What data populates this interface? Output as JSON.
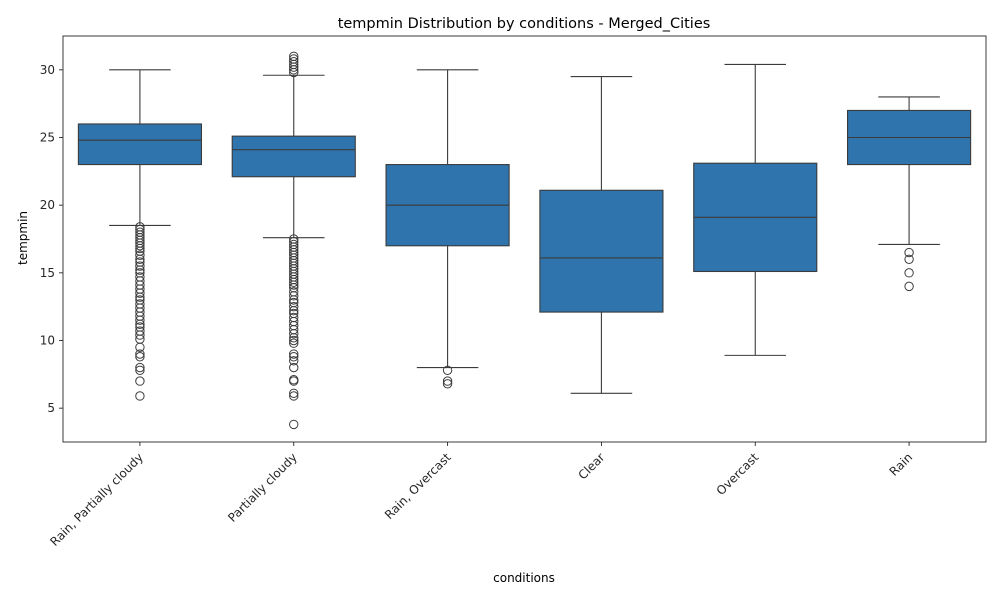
{
  "chart_data": {
    "type": "box",
    "title": "tempmin Distribution by conditions - Merged_Cities",
    "xlabel": "conditions",
    "ylabel": "tempmin",
    "ylim": [
      2.5,
      32.5
    ],
    "yticks": [
      5,
      10,
      15,
      20,
      25,
      30
    ],
    "grid": false,
    "legend": "none",
    "colors": {
      "box_fill": "#2f74ad",
      "line": "#3b3b3b",
      "frame": "#262626"
    },
    "categories": [
      "Rain, Partially cloudy",
      "Partially cloudy",
      "Rain, Overcast",
      "Clear",
      "Overcast",
      "Rain"
    ],
    "boxes": [
      {
        "category": "Rain, Partially cloudy",
        "whisker_low": 18.5,
        "q1": 23.0,
        "median": 24.8,
        "q3": 26.0,
        "whisker_high": 30.0,
        "outliers": [
          18.4,
          18.2,
          18.0,
          17.8,
          17.6,
          17.4,
          17.2,
          17.0,
          16.8,
          16.6,
          16.3,
          16.0,
          15.8,
          15.5,
          15.2,
          15.0,
          14.7,
          14.4,
          14.1,
          13.8,
          13.5,
          13.2,
          13.0,
          12.7,
          12.4,
          12.1,
          11.8,
          11.5,
          11.2,
          11.0,
          10.7,
          10.4,
          10.1,
          9.5,
          9.0,
          8.8,
          8.0,
          7.8,
          7.0,
          5.9
        ]
      },
      {
        "category": "Partially cloudy",
        "whisker_low": 17.6,
        "q1": 22.1,
        "median": 24.1,
        "q3": 25.1,
        "whisker_high": 29.6,
        "outliers": [
          31.0,
          30.8,
          30.6,
          30.4,
          30.2,
          30.0,
          29.8,
          17.5,
          17.3,
          17.1,
          16.9,
          16.7,
          16.5,
          16.3,
          16.1,
          15.9,
          15.7,
          15.5,
          15.3,
          15.1,
          14.9,
          14.7,
          14.5,
          14.3,
          14.1,
          13.9,
          13.6,
          13.3,
          13.0,
          12.8,
          12.5,
          12.2,
          12.0,
          11.7,
          11.4,
          11.1,
          10.8,
          10.5,
          10.2,
          10.0,
          9.8,
          9.0,
          8.8,
          8.5,
          8.0,
          7.1,
          7.0,
          6.1,
          5.9,
          3.8
        ]
      },
      {
        "category": "Rain, Overcast",
        "whisker_low": 8.0,
        "q1": 17.0,
        "median": 20.0,
        "q3": 23.0,
        "whisker_high": 30.0,
        "outliers": [
          7.8,
          7.0,
          6.8
        ]
      },
      {
        "category": "Clear",
        "whisker_low": 6.1,
        "q1": 12.1,
        "median": 16.1,
        "q3": 21.1,
        "whisker_high": 29.5,
        "outliers": []
      },
      {
        "category": "Overcast",
        "whisker_low": 8.9,
        "q1": 15.1,
        "median": 19.1,
        "q3": 23.1,
        "whisker_high": 30.4,
        "outliers": []
      },
      {
        "category": "Rain",
        "whisker_low": 17.1,
        "q1": 23.0,
        "median": 25.0,
        "q3": 27.0,
        "whisker_high": 28.0,
        "outliers": [
          16.5,
          16.0,
          15.0,
          14.0
        ]
      }
    ]
  }
}
